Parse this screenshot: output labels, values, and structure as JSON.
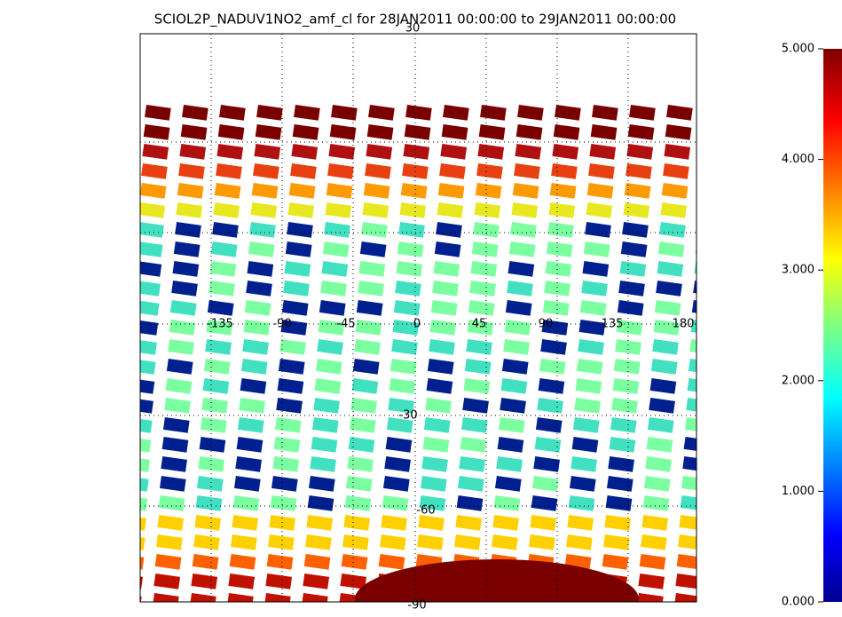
{
  "title": "SCIOL2P_NADUV1NO2_amf_cl for 28JAN2011 00:00:00 to 29JAN2011 00:00:00",
  "colorbar": {
    "range": [
      0,
      5
    ],
    "ticks": [
      {
        "value": 0,
        "label": "0.000"
      },
      {
        "value": 1,
        "label": "1.000"
      },
      {
        "value": 2,
        "label": "2.000"
      },
      {
        "value": 3,
        "label": "3.000"
      },
      {
        "value": 4,
        "label": "4.000"
      },
      {
        "value": 5,
        "label": "5.000"
      }
    ]
  },
  "map": {
    "lon_labels": [
      "-135",
      "-90",
      "-45",
      "0",
      "45",
      "90",
      "135",
      "180"
    ],
    "lat_labels": [
      "30",
      "-30",
      "-60",
      "-90"
    ]
  }
}
